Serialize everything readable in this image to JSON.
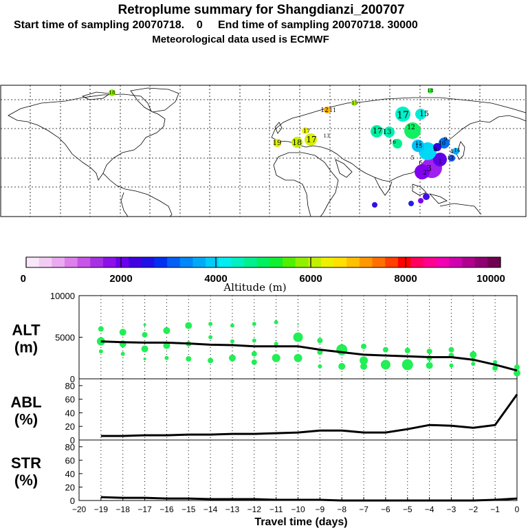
{
  "header": {
    "title": "Retroplume summary for Shangdianzi_200707",
    "sampling_line": "Start time of sampling 20070718.    0     End time of sampling 20070718. 30000",
    "met_line": "Meteorological data used is ECMWF"
  },
  "map": {
    "labels": [
      "18",
      "12",
      "11",
      "15",
      "15",
      "17",
      "17",
      "19",
      "18",
      "17",
      "13",
      "17",
      "15",
      "12",
      "13",
      "10",
      "9",
      "8",
      "3",
      "2",
      "1",
      "6",
      "5",
      "4",
      "14",
      "13",
      "15",
      "16",
      "18"
    ]
  },
  "colorbar": {
    "title": "Altitude (m)",
    "tick_labels": [
      "0",
      "2000",
      "4000",
      "6000",
      "8000",
      "10000"
    ],
    "colors": [
      "#f9e6f9",
      "#f3ccf3",
      "#eaaaf0",
      "#dd80ec",
      "#c855e8",
      "#a830e4",
      "#8c10e8",
      "#6a00ec",
      "#4000e0",
      "#2010e8",
      "#0030f0",
      "#0060f4",
      "#0088f8",
      "#00aaf8",
      "#00ccf8",
      "#00eef0",
      "#00f0c0",
      "#00f090",
      "#00f060",
      "#10f030",
      "#50f000",
      "#90f000",
      "#c0f000",
      "#eef000",
      "#ffe000",
      "#ffc000",
      "#ff9800",
      "#ff7000",
      "#ff4000",
      "#ff0000",
      "#ff0060",
      "#ff0090",
      "#f000b0",
      "#d000b0",
      "#b00090",
      "#900070",
      "#700050"
    ]
  },
  "chart_data": [
    {
      "type": "line",
      "panel_label": "ALT",
      "unit_label": "(m)",
      "x": [
        -19,
        -18,
        -17,
        -16,
        -15,
        -14,
        -13,
        -12,
        -11,
        -10,
        -9,
        -8,
        -7,
        -6,
        -5,
        -4,
        -3,
        -2,
        -1,
        0
      ],
      "values": [
        4500,
        4400,
        4350,
        4350,
        4250,
        4100,
        4050,
        3900,
        3900,
        3900,
        3500,
        3200,
        2900,
        2800,
        2700,
        2600,
        2600,
        2300,
        1700,
        1000
      ],
      "ylim": [
        0,
        10000
      ],
      "y_ticks": [
        0,
        5000,
        10000
      ],
      "y_tick_labels": [
        "0",
        "5000",
        "10000"
      ],
      "points": [
        {
          "x": -19,
          "y": 6000,
          "r": 4
        },
        {
          "x": -19,
          "y": 4500,
          "r": 6
        },
        {
          "x": -19,
          "y": 3300,
          "r": 3
        },
        {
          "x": -18,
          "y": 5600,
          "r": 5
        },
        {
          "x": -18,
          "y": 4200,
          "r": 5
        },
        {
          "x": -18,
          "y": 3000,
          "r": 3
        },
        {
          "x": -17,
          "y": 6500,
          "r": 2
        },
        {
          "x": -17,
          "y": 5300,
          "r": 4
        },
        {
          "x": -17,
          "y": 3600,
          "r": 5
        },
        {
          "x": -17,
          "y": 2400,
          "r": 2
        },
        {
          "x": -16,
          "y": 5800,
          "r": 5
        },
        {
          "x": -16,
          "y": 4000,
          "r": 5
        },
        {
          "x": -16,
          "y": 2500,
          "r": 3
        },
        {
          "x": -15,
          "y": 6400,
          "r": 5
        },
        {
          "x": -15,
          "y": 4200,
          "r": 4
        },
        {
          "x": -15,
          "y": 2400,
          "r": 4
        },
        {
          "x": -14,
          "y": 6600,
          "r": 3
        },
        {
          "x": -14,
          "y": 5000,
          "r": 3
        },
        {
          "x": -14,
          "y": 2200,
          "r": 4
        },
        {
          "x": -13,
          "y": 6400,
          "r": 3
        },
        {
          "x": -13,
          "y": 4500,
          "r": 3
        },
        {
          "x": -13,
          "y": 2500,
          "r": 5
        },
        {
          "x": -12,
          "y": 6600,
          "r": 3
        },
        {
          "x": -12,
          "y": 4600,
          "r": 3
        },
        {
          "x": -12,
          "y": 3000,
          "r": 4
        },
        {
          "x": -12,
          "y": 2000,
          "r": 4
        },
        {
          "x": -11,
          "y": 6800,
          "r": 3
        },
        {
          "x": -11,
          "y": 4200,
          "r": 3
        },
        {
          "x": -11,
          "y": 2500,
          "r": 6
        },
        {
          "x": -10,
          "y": 6500,
          "r": 1
        },
        {
          "x": -10,
          "y": 5000,
          "r": 7
        },
        {
          "x": -10,
          "y": 2500,
          "r": 6
        },
        {
          "x": -9,
          "y": 4600,
          "r": 4
        },
        {
          "x": -9,
          "y": 3200,
          "r": 4
        },
        {
          "x": -9,
          "y": 1500,
          "r": 3
        },
        {
          "x": -8,
          "y": 3500,
          "r": 8
        },
        {
          "x": -8,
          "y": 1500,
          "r": 5
        },
        {
          "x": -7,
          "y": 3900,
          "r": 4
        },
        {
          "x": -7,
          "y": 2200,
          "r": 6
        },
        {
          "x": -7,
          "y": 1500,
          "r": 5
        },
        {
          "x": -6,
          "y": 3500,
          "r": 4
        },
        {
          "x": -6,
          "y": 1700,
          "r": 7
        },
        {
          "x": -5,
          "y": 3400,
          "r": 4
        },
        {
          "x": -5,
          "y": 1700,
          "r": 8
        },
        {
          "x": -4,
          "y": 3300,
          "r": 4
        },
        {
          "x": -4,
          "y": 2500,
          "r": 4
        },
        {
          "x": -4,
          "y": 1600,
          "r": 5
        },
        {
          "x": -3,
          "y": 3500,
          "r": 4
        },
        {
          "x": -3,
          "y": 2800,
          "r": 4
        },
        {
          "x": -3,
          "y": 1600,
          "r": 3
        },
        {
          "x": -2,
          "y": 2900,
          "r": 5
        },
        {
          "x": -2,
          "y": 2300,
          "r": 3
        },
        {
          "x": -2,
          "y": 1800,
          "r": 3
        },
        {
          "x": -1,
          "y": 2000,
          "r": 3
        },
        {
          "x": -1,
          "y": 1300,
          "r": 4
        },
        {
          "x": 0,
          "y": 1400,
          "r": 4
        },
        {
          "x": 0,
          "y": 700,
          "r": 5
        }
      ]
    },
    {
      "type": "line",
      "panel_label": "ABL",
      "unit_label": "(%)",
      "x": [
        -19,
        -18,
        -17,
        -16,
        -15,
        -14,
        -13,
        -12,
        -11,
        -10,
        -9,
        -8,
        -7,
        -6,
        -5,
        -4,
        -3,
        -2,
        -1,
        0
      ],
      "values": [
        6,
        6,
        7,
        7,
        8,
        8,
        9,
        9,
        10,
        11,
        14,
        14,
        11,
        11,
        16,
        22,
        21,
        18,
        22,
        67
      ],
      "ylim": [
        0,
        90
      ],
      "y_ticks": [
        0,
        20,
        40,
        60,
        80
      ],
      "y_tick_labels": [
        "0",
        "20",
        "40",
        "60",
        "80"
      ]
    },
    {
      "type": "line",
      "panel_label": "STR",
      "unit_label": "(%)",
      "x": [
        -19,
        -18,
        -17,
        -16,
        -15,
        -14,
        -13,
        -12,
        -11,
        -10,
        -9,
        -8,
        -7,
        -6,
        -5,
        -4,
        -3,
        -2,
        -1,
        0
      ],
      "values": [
        5,
        4,
        4,
        3,
        3,
        2,
        2,
        2,
        1,
        1,
        1,
        0,
        0,
        0,
        0,
        0,
        0,
        0,
        1,
        3
      ],
      "ylim": [
        0,
        90
      ],
      "y_ticks": [
        0,
        20,
        40,
        60,
        80
      ],
      "y_tick_labels": [
        "0",
        "20",
        "40",
        "60",
        "80"
      ]
    }
  ],
  "x_axis": {
    "xlabel": "Travel time (days)",
    "ticks": [
      -20,
      -19,
      -18,
      -17,
      -16,
      -15,
      -14,
      -13,
      -12,
      -11,
      -10,
      -9,
      -8,
      -7,
      -6,
      -5,
      -4,
      -3,
      -2,
      -1,
      0
    ],
    "tick_labels": [
      "−20",
      "−19",
      "−18",
      "−17",
      "−16",
      "−15",
      "−14",
      "−13",
      "−12",
      "−11",
      "−10",
      "−9",
      "−8",
      "−7",
      "−6",
      "−5",
      "−4",
      "−3",
      "−2",
      "−1",
      "0"
    ]
  }
}
